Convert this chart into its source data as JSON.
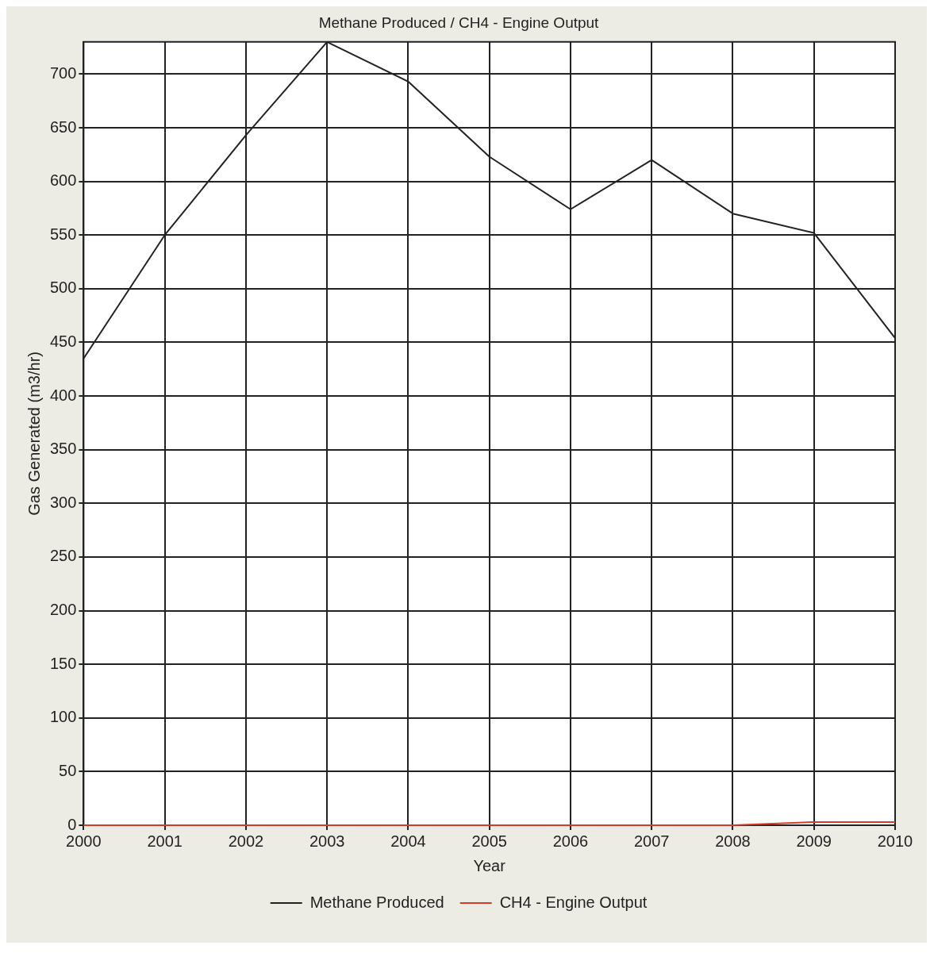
{
  "chart_data": {
    "type": "line",
    "title": "Methane Produced / CH4 - Engine Output",
    "xlabel": "Year",
    "ylabel": "Gas Generated (m3/hr)",
    "x": [
      2000,
      2001,
      2002,
      2003,
      2004,
      2005,
      2006,
      2007,
      2008,
      2009,
      2010
    ],
    "xlim": [
      2000,
      2010
    ],
    "xticks": [
      2000,
      2001,
      2002,
      2003,
      2004,
      2005,
      2006,
      2007,
      2008,
      2009,
      2010
    ],
    "ylim": [
      0,
      730
    ],
    "yticks": [
      0,
      50,
      100,
      150,
      200,
      250,
      300,
      350,
      400,
      450,
      500,
      550,
      600,
      650,
      700
    ],
    "series": [
      {
        "name": "Methane Produced",
        "color": "#222222",
        "values": [
          435,
          550,
          643,
          730,
          693,
          623,
          574,
          620,
          570,
          552,
          454
        ]
      },
      {
        "name": "CH4 - Engine Output",
        "color": "#d23c28",
        "values": [
          0,
          0,
          0,
          0,
          0,
          0,
          0,
          0,
          0,
          3,
          3
        ]
      }
    ],
    "grid": true,
    "legend": "bottom",
    "marker": "none",
    "line_style": "solid"
  }
}
